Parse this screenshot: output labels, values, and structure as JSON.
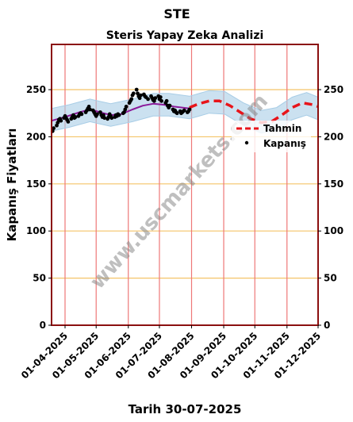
{
  "title": "STE",
  "chart_data": {
    "type": "line",
    "title": "Steris Yapay Zeka Analizi",
    "ylabel": "Kapanış Fiyatları",
    "xlabel": "Tarih 30-07-2025",
    "watermark": "www.uscmarkets.com",
    "xlim": [
      "2025-03-19",
      "2025-12-01"
    ],
    "ylim": [
      0,
      298
    ],
    "yticks": [
      0,
      50,
      100,
      150,
      200,
      250
    ],
    "xtick_dates": [
      "2025-04-01",
      "2025-05-01",
      "2025-06-01",
      "2025-07-01",
      "2025-08-01",
      "2025-09-01",
      "2025-10-01",
      "2025-11-01",
      "2025-12-01"
    ],
    "xtick_labels": [
      "01-04-2025",
      "01-05-2025",
      "01-06-2025",
      "01-07-2025",
      "01-08-2025",
      "01-09-2025",
      "01-10-2025",
      "01-11-2025",
      "01-12-2025"
    ],
    "legend_position": "right",
    "grid": {
      "horizontal_color": "#f5c469",
      "vertical_color": "#ee7777"
    },
    "series": [
      {
        "name": "Kapanış",
        "type": "scatter",
        "color": "#000000",
        "points": [
          [
            "2025-03-20",
            206
          ],
          [
            "2025-03-21",
            209
          ],
          [
            "2025-03-24",
            212
          ],
          [
            "2025-03-25",
            215
          ],
          [
            "2025-03-26",
            218
          ],
          [
            "2025-03-27",
            219
          ],
          [
            "2025-03-28",
            217
          ],
          [
            "2025-03-31",
            220
          ],
          [
            "2025-04-01",
            222
          ],
          [
            "2025-04-02",
            220
          ],
          [
            "2025-04-03",
            218
          ],
          [
            "2025-04-04",
            216
          ],
          [
            "2025-04-07",
            219
          ],
          [
            "2025-04-08",
            221
          ],
          [
            "2025-04-09",
            223
          ],
          [
            "2025-04-10",
            220
          ],
          [
            "2025-04-11",
            221
          ],
          [
            "2025-04-14",
            222
          ],
          [
            "2025-04-15",
            224
          ],
          [
            "2025-04-16",
            225
          ],
          [
            "2025-04-17",
            224
          ],
          [
            "2025-04-21",
            226
          ],
          [
            "2025-04-22",
            228
          ],
          [
            "2025-04-23",
            230
          ],
          [
            "2025-04-24",
            232
          ],
          [
            "2025-04-25",
            229
          ],
          [
            "2025-04-28",
            228
          ],
          [
            "2025-04-29",
            226
          ],
          [
            "2025-04-30",
            224
          ],
          [
            "2025-05-01",
            222
          ],
          [
            "2025-05-02",
            224
          ],
          [
            "2025-05-05",
            226
          ],
          [
            "2025-05-06",
            223
          ],
          [
            "2025-05-07",
            221
          ],
          [
            "2025-05-08",
            223
          ],
          [
            "2025-05-09",
            220
          ],
          [
            "2025-05-12",
            219
          ],
          [
            "2025-05-13",
            221
          ],
          [
            "2025-05-14",
            224
          ],
          [
            "2025-05-15",
            222
          ],
          [
            "2025-05-16",
            220
          ],
          [
            "2025-05-19",
            221
          ],
          [
            "2025-05-20",
            223
          ],
          [
            "2025-05-21",
            222
          ],
          [
            "2025-05-22",
            224
          ],
          [
            "2025-05-23",
            223
          ],
          [
            "2025-05-27",
            225
          ],
          [
            "2025-05-28",
            226
          ],
          [
            "2025-05-29",
            229
          ],
          [
            "2025-05-30",
            232
          ],
          [
            "2025-06-02",
            236
          ],
          [
            "2025-06-03",
            238
          ],
          [
            "2025-06-04",
            240
          ],
          [
            "2025-06-05",
            244
          ],
          [
            "2025-06-06",
            246
          ],
          [
            "2025-06-09",
            250
          ],
          [
            "2025-06-10",
            246
          ],
          [
            "2025-06-11",
            243
          ],
          [
            "2025-06-12",
            241
          ],
          [
            "2025-06-13",
            244
          ],
          [
            "2025-06-16",
            245
          ],
          [
            "2025-06-17",
            243
          ],
          [
            "2025-06-18",
            242
          ],
          [
            "2025-06-20",
            240
          ],
          [
            "2025-06-23",
            243
          ],
          [
            "2025-06-24",
            241
          ],
          [
            "2025-06-25",
            239
          ],
          [
            "2025-06-26",
            238
          ],
          [
            "2025-06-27",
            241
          ],
          [
            "2025-06-30",
            243
          ],
          [
            "2025-07-01",
            240
          ],
          [
            "2025-07-02",
            242
          ],
          [
            "2025-07-03",
            238
          ],
          [
            "2025-07-07",
            236
          ],
          [
            "2025-07-08",
            238
          ],
          [
            "2025-07-09",
            233
          ],
          [
            "2025-07-10",
            231
          ],
          [
            "2025-07-11",
            233
          ],
          [
            "2025-07-14",
            229
          ],
          [
            "2025-07-15",
            227
          ],
          [
            "2025-07-16",
            228
          ],
          [
            "2025-07-17",
            226
          ],
          [
            "2025-07-18",
            225
          ],
          [
            "2025-07-21",
            227
          ],
          [
            "2025-07-22",
            225
          ],
          [
            "2025-07-23",
            226
          ],
          [
            "2025-07-24",
            227
          ],
          [
            "2025-07-25",
            228
          ],
          [
            "2025-07-28",
            226
          ],
          [
            "2025-07-29",
            227
          ],
          [
            "2025-07-30",
            229
          ]
        ]
      },
      {
        "name": "",
        "type": "line",
        "color": "#8b1a9a",
        "points": [
          [
            "2025-03-19",
            217
          ],
          [
            "2025-04-01",
            221
          ],
          [
            "2025-04-15",
            226
          ],
          [
            "2025-04-25",
            229
          ],
          [
            "2025-05-05",
            226
          ],
          [
            "2025-05-15",
            223
          ],
          [
            "2025-05-25",
            224
          ],
          [
            "2025-06-05",
            229
          ],
          [
            "2025-06-15",
            233
          ],
          [
            "2025-06-25",
            235
          ],
          [
            "2025-07-05",
            234
          ],
          [
            "2025-07-15",
            232
          ],
          [
            "2025-07-30",
            230
          ]
        ]
      },
      {
        "name": "Tahmin",
        "type": "line",
        "style": "dashed",
        "color": "#e8141a",
        "points": [
          [
            "2025-07-30",
            231
          ],
          [
            "2025-08-08",
            235
          ],
          [
            "2025-08-18",
            238
          ],
          [
            "2025-08-28",
            238
          ],
          [
            "2025-09-07",
            233
          ],
          [
            "2025-09-17",
            226
          ],
          [
            "2025-09-27",
            219
          ],
          [
            "2025-10-07",
            215
          ],
          [
            "2025-10-17",
            216
          ],
          [
            "2025-10-27",
            223
          ],
          [
            "2025-11-06",
            231
          ],
          [
            "2025-11-16",
            236
          ],
          [
            "2025-11-26",
            234
          ],
          [
            "2025-12-01",
            232
          ]
        ]
      }
    ],
    "band": {
      "color": "#a8cde6",
      "center": [
        [
          "2025-03-19",
          218
        ],
        [
          "2025-04-05",
          222
        ],
        [
          "2025-04-25",
          228
        ],
        [
          "2025-05-15",
          223
        ],
        [
          "2025-06-05",
          228
        ],
        [
          "2025-06-25",
          234
        ],
        [
          "2025-07-10",
          234
        ],
        [
          "2025-07-30",
          231
        ],
        [
          "2025-08-18",
          237
        ],
        [
          "2025-09-02",
          236
        ],
        [
          "2025-09-20",
          224
        ],
        [
          "2025-10-07",
          216
        ],
        [
          "2025-10-22",
          219
        ],
        [
          "2025-11-06",
          230
        ],
        [
          "2025-11-20",
          235
        ],
        [
          "2025-12-01",
          230
        ]
      ],
      "halfwidth": 12
    }
  }
}
